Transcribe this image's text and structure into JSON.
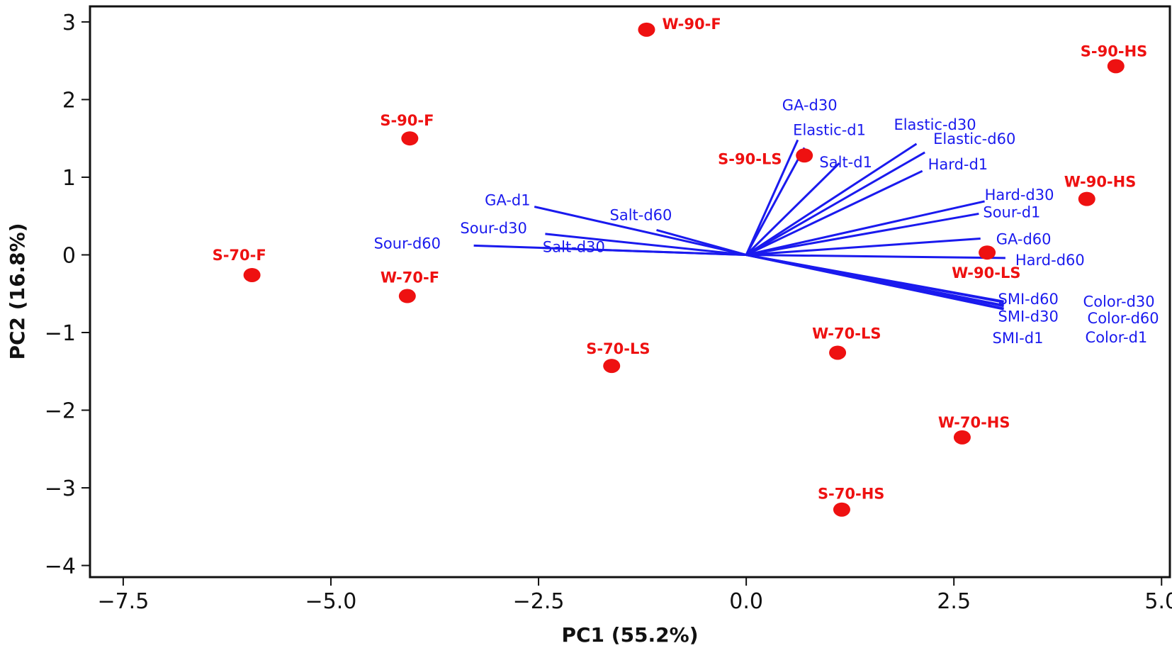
{
  "chart_data": {
    "type": "biplot",
    "xlabel": "PC1 (55.2%)",
    "ylabel": "PC2 (16.8%)",
    "xlim": [
      -7.9,
      5.1
    ],
    "ylim": [
      -4.15,
      3.2
    ],
    "xticks": [
      -7.5,
      -5.0,
      -2.5,
      0.0,
      2.5,
      5.0
    ],
    "xtick_labels": [
      "−7.5",
      "−5.0",
      "−2.5",
      "0.0",
      "2.5",
      "5.0"
    ],
    "yticks": [
      3,
      2,
      1,
      0,
      -1,
      -2,
      -3,
      -4
    ],
    "ytick_labels": [
      "3",
      "2",
      "1",
      "0",
      "−1",
      "−2",
      "−3",
      "−4"
    ],
    "grid": false,
    "colors": {
      "scores": "#ee1111",
      "loadings": "#1a1aee"
    },
    "scores": [
      {
        "label": "W-90-F",
        "x": -1.2,
        "y": 2.9
      },
      {
        "label": "S-90-HS",
        "x": 4.45,
        "y": 2.43
      },
      {
        "label": "S-90-F",
        "x": -4.05,
        "y": 1.5
      },
      {
        "label": "S-90-LS",
        "x": 0.7,
        "y": 1.28
      },
      {
        "label": "W-90-HS",
        "x": 4.1,
        "y": 0.72
      },
      {
        "label": "S-70-F",
        "x": -5.95,
        "y": -0.26
      },
      {
        "label": "W-70-F",
        "x": -4.08,
        "y": -0.53
      },
      {
        "label": "W-90-LS",
        "x": 2.9,
        "y": 0.03
      },
      {
        "label": "S-70-LS",
        "x": -1.62,
        "y": -1.43
      },
      {
        "label": "W-70-LS",
        "x": 1.1,
        "y": -1.26
      },
      {
        "label": "W-70-HS",
        "x": 2.6,
        "y": -2.35
      },
      {
        "label": "S-70-HS",
        "x": 1.15,
        "y": -3.28
      }
    ],
    "loadings": [
      {
        "label": "GA-d30",
        "x": 0.62,
        "y": 1.48
      },
      {
        "label": "Elastic-d1",
        "x": 0.7,
        "y": 1.38
      },
      {
        "label": "Salt-d1",
        "x": 1.12,
        "y": 1.18
      },
      {
        "label": "Elastic-d30",
        "x": 2.05,
        "y": 1.43
      },
      {
        "label": "Elastic-d60",
        "x": 2.15,
        "y": 1.32
      },
      {
        "label": "Hard-d1",
        "x": 2.12,
        "y": 1.08
      },
      {
        "label": "Hard-d30",
        "x": 2.87,
        "y": 0.69
      },
      {
        "label": "Sour-d1",
        "x": 2.8,
        "y": 0.53
      },
      {
        "label": "GA-d60",
        "x": 2.82,
        "y": 0.21
      },
      {
        "label": "Hard-d60",
        "x": 3.12,
        "y": -0.04
      },
      {
        "label": "SMI-d60",
        "x": 3.1,
        "y": -0.6
      },
      {
        "label": "SMI-d30",
        "x": 3.1,
        "y": -0.65
      },
      {
        "label": "SMI-d1",
        "x": 3.1,
        "y": -0.69
      },
      {
        "label": "Color-d30",
        "x": 3.1,
        "y": -0.61
      },
      {
        "label": "Color-d60",
        "x": 3.1,
        "y": -0.66
      },
      {
        "label": "Color-d1",
        "x": 3.1,
        "y": -0.7
      },
      {
        "label": "GA-d1",
        "x": -2.55,
        "y": 0.62
      },
      {
        "label": "Salt-d60",
        "x": -1.08,
        "y": 0.32
      },
      {
        "label": "Sour-d30",
        "x": -2.42,
        "y": 0.27
      },
      {
        "label": "Salt-d30",
        "x": -2.45,
        "y": 0.09
      },
      {
        "label": "Sour-d60",
        "x": -3.28,
        "y": 0.12
      }
    ]
  }
}
